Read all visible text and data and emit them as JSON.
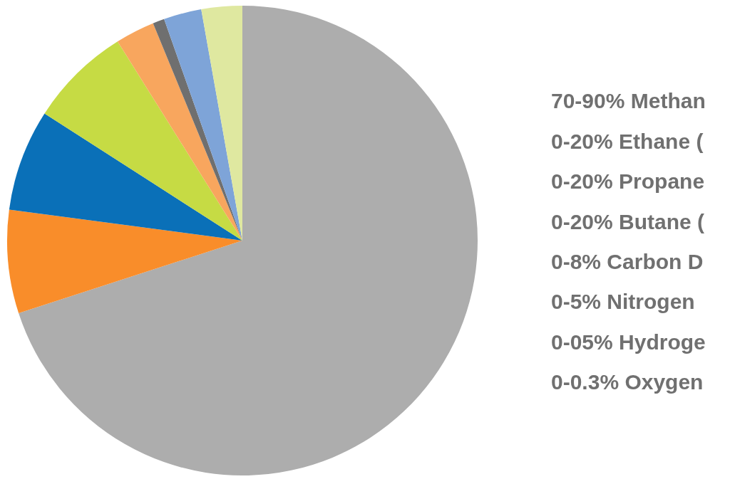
{
  "chart_data": {
    "type": "pie",
    "categories": [
      null,
      null,
      null,
      null,
      null,
      null,
      null,
      null
    ],
    "values": [
      70,
      7.1,
      7,
      7,
      2.7,
      0.8,
      2.6,
      2.8
    ],
    "colors": [
      "#adadad",
      "#f98d2a",
      "#0a70b8",
      "#c6db44",
      "#f8a65e",
      "#6f6f6f",
      "#7ea4d8",
      "#dfe8a0"
    ],
    "annotations": [
      "70-90% Methan",
      "0-20% Ethane (",
      "0-20% Propane",
      "0-20% Butane (",
      "0-8% Carbon D",
      "0-5% Nitrogen",
      "0-05% Hydroge",
      "0-0.3% Oxygen"
    ]
  }
}
